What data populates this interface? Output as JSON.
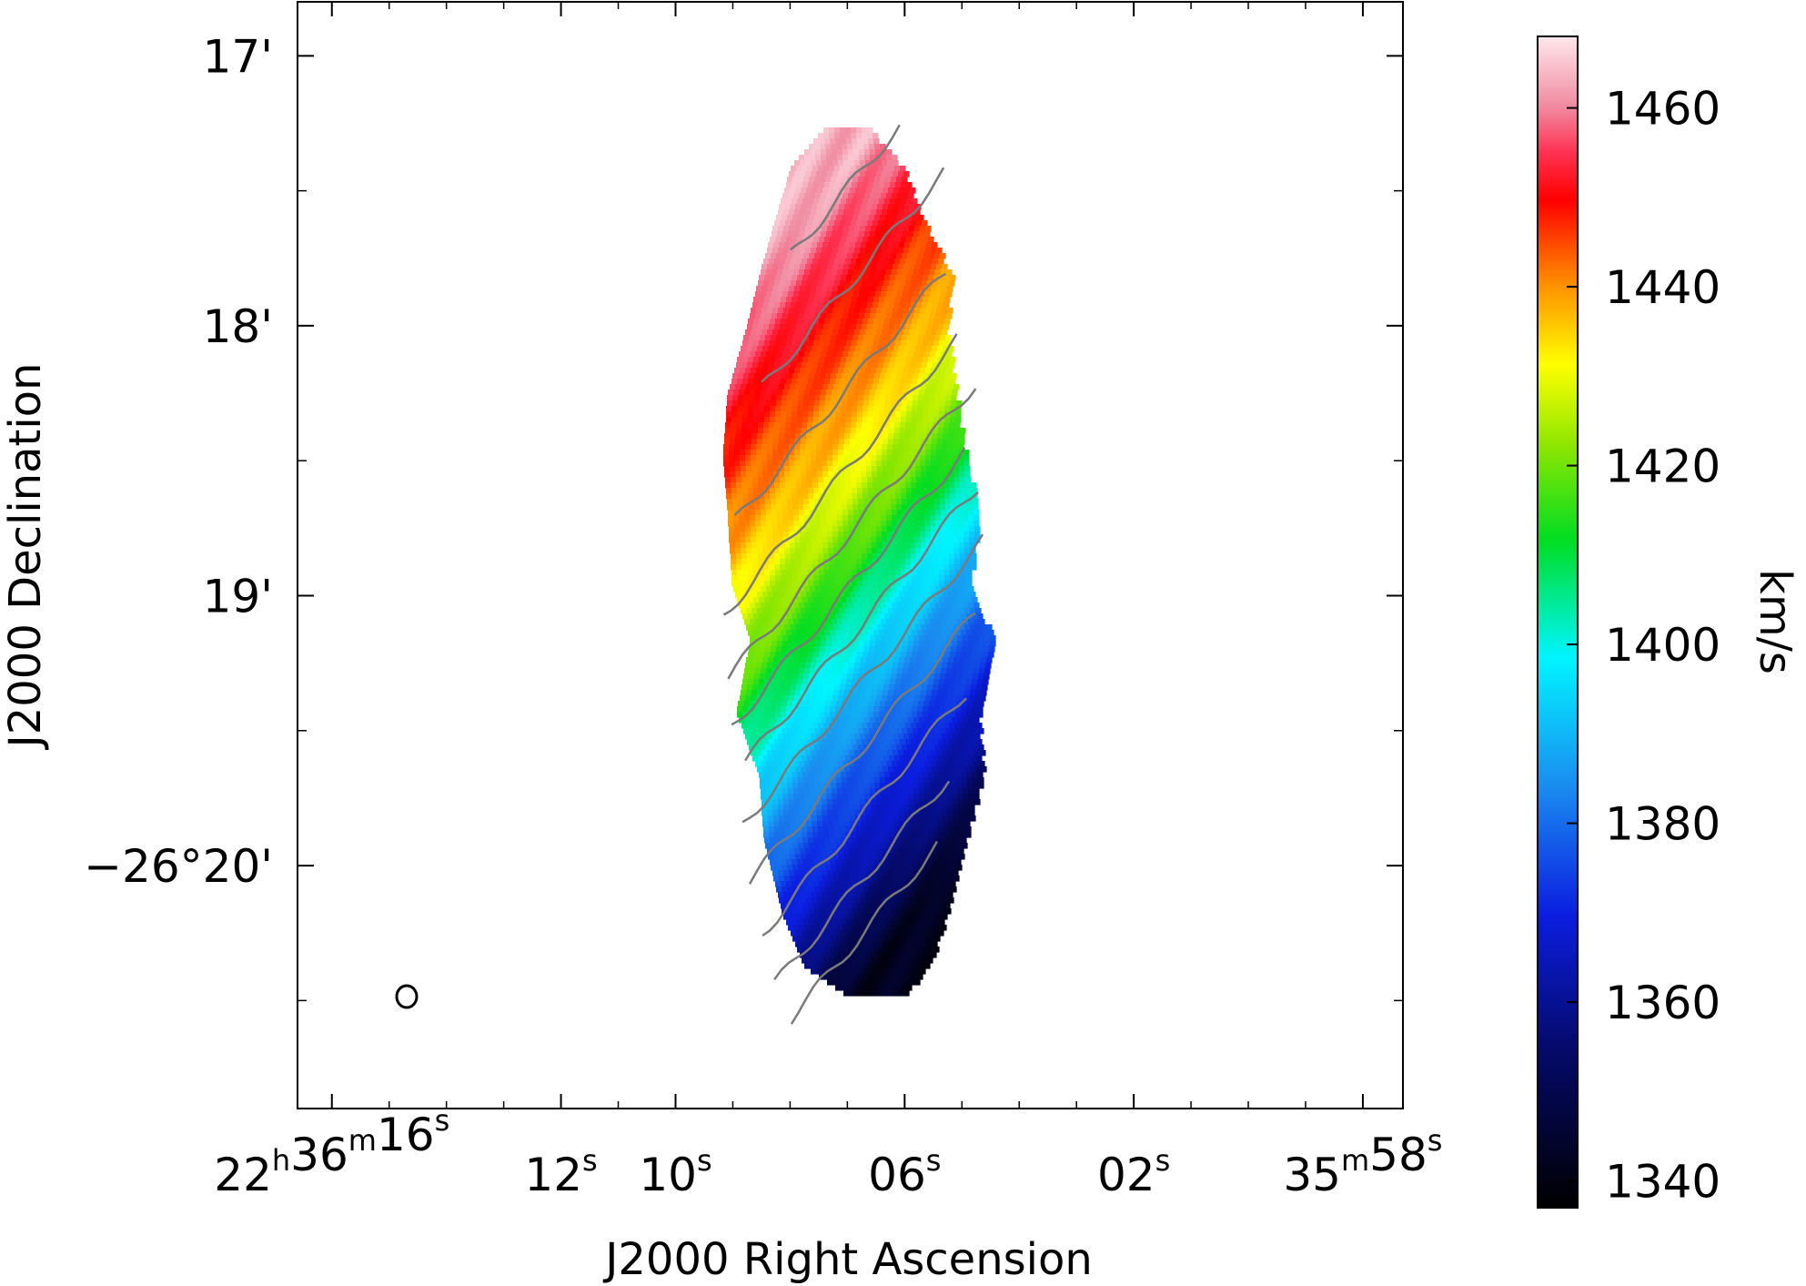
{
  "chart_data": {
    "type": "heatmap",
    "xlabel": "J2000 Right Ascension",
    "ylabel": "J2000 Declination",
    "x_ticks": [
      {
        "h": "22",
        "m": "36",
        "s": "16"
      },
      {
        "s": "12"
      },
      {
        "s": "10"
      },
      {
        "s": "06"
      },
      {
        "s": "02"
      },
      {
        "m": "35",
        "s": "58"
      }
    ],
    "x_tick_seconds": [
      16,
      12,
      10,
      6,
      2,
      -2
    ],
    "x_range_seconds": [
      16.6,
      -2.7
    ],
    "y_ticks": [
      {
        "text": "17'",
        "arcmin": 17
      },
      {
        "text": "18'",
        "arcmin": 18
      },
      {
        "text": "19'",
        "arcmin": 19
      },
      {
        "text": "−26°20'",
        "arcmin": 20
      }
    ],
    "y_range_arcmin": [
      16.8,
      20.9
    ],
    "colorbar": {
      "label": "km/s",
      "vmin": 1337,
      "vmax": 1468,
      "ticks": [
        "1340",
        "1360",
        "1380",
        "1400",
        "1420",
        "1440",
        "1460"
      ],
      "tick_values": [
        1340,
        1360,
        1380,
        1400,
        1420,
        1440,
        1460
      ]
    },
    "velocity_profile": [
      {
        "dec_arcmin": 17.3,
        "velocity": 1463
      },
      {
        "dec_arcmin": 17.85,
        "velocity": 1448
      },
      {
        "dec_arcmin": 18.3,
        "velocity": 1436
      },
      {
        "dec_arcmin": 18.75,
        "velocity": 1418
      },
      {
        "dec_arcmin": 19.15,
        "velocity": 1397
      },
      {
        "dec_arcmin": 19.55,
        "velocity": 1380
      },
      {
        "dec_arcmin": 20.0,
        "velocity": 1362
      },
      {
        "dec_arcmin": 20.4,
        "velocity": 1342
      }
    ],
    "contour_levels_kms": [
      1350,
      1360,
      1370,
      1380,
      1390,
      1400,
      1410,
      1420,
      1430,
      1440,
      1450,
      1460
    ],
    "beam": "ellipse, lower-left corner"
  }
}
